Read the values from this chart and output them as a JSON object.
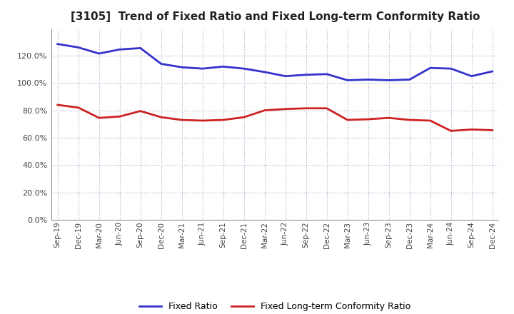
{
  "title": "[3105]  Trend of Fixed Ratio and Fixed Long-term Conformity Ratio",
  "x_labels": [
    "Sep-19",
    "Dec-19",
    "Mar-20",
    "Jun-20",
    "Sep-20",
    "Dec-20",
    "Mar-21",
    "Jun-21",
    "Sep-21",
    "Dec-21",
    "Mar-22",
    "Jun-22",
    "Sep-22",
    "Dec-22",
    "Mar-23",
    "Jun-23",
    "Sep-23",
    "Dec-23",
    "Mar-24",
    "Jun-24",
    "Sep-24",
    "Dec-24"
  ],
  "fixed_ratio": [
    128.5,
    126.0,
    121.5,
    124.5,
    125.5,
    114.0,
    111.5,
    110.5,
    112.0,
    110.5,
    108.0,
    105.0,
    106.0,
    106.5,
    102.0,
    102.5,
    102.0,
    102.5,
    111.0,
    110.5,
    105.0,
    108.5
  ],
  "fixed_lt_ratio": [
    84.0,
    82.0,
    74.5,
    75.5,
    79.5,
    75.0,
    73.0,
    72.5,
    73.0,
    75.0,
    80.0,
    81.0,
    81.5,
    81.5,
    73.0,
    73.5,
    74.5,
    73.0,
    72.5,
    65.0,
    66.0,
    65.5
  ],
  "ylim": [
    0,
    140
  ],
  "yticks": [
    0,
    20,
    40,
    60,
    80,
    100,
    120
  ],
  "fixed_ratio_color": "#3333CC",
  "fixed_lt_ratio_color": "#CC2222",
  "grid_color": "#aaaacc",
  "background_color": "#ffffff",
  "title_fontsize": 11,
  "legend_labels": [
    "Fixed Ratio",
    "Fixed Long-term Conformity Ratio"
  ]
}
